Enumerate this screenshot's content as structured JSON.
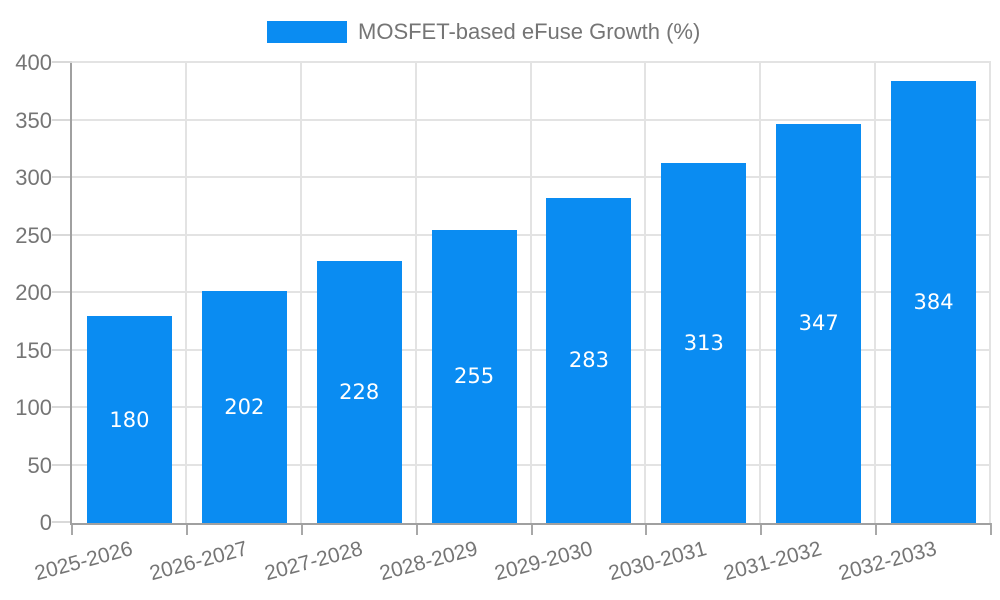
{
  "chart_data": {
    "type": "bar",
    "legend": "MOSFET-based eFuse Growth (%)",
    "legend_position": "top",
    "categories": [
      "2025-2026",
      "2026-2027",
      "2027-2028",
      "2028-2029",
      "2029-2030",
      "2030-2031",
      "2031-2032",
      "2032-2033"
    ],
    "values": [
      180,
      202,
      228,
      255,
      283,
      313,
      347,
      384
    ],
    "xlabel": "",
    "ylabel": "",
    "ylim": [
      0,
      400
    ],
    "yticks": [
      0,
      50,
      100,
      150,
      200,
      250,
      300,
      350,
      400
    ],
    "grid": true,
    "value_labels_inside_bars": true,
    "colors": {
      "bar": "#0a8cf2",
      "axis_text": "#757575",
      "grid": "#e3e3e3",
      "axis_line": "#a0a0a0",
      "tick_y": "#d9d9d9",
      "tick_x": "#a8a8a8",
      "value_label": "#ffffff",
      "background": "#ffffff"
    }
  }
}
